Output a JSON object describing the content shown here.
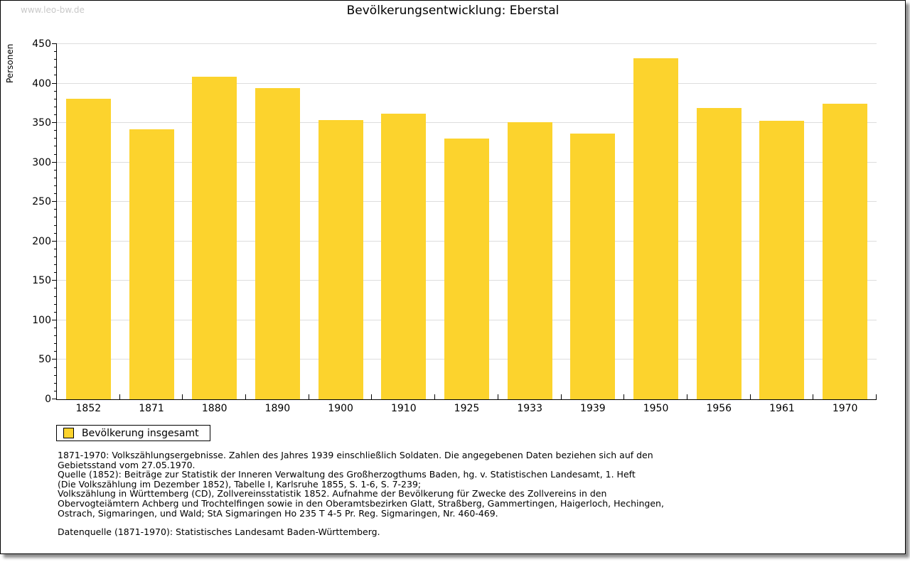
{
  "watermark": "www.leo-bw.de",
  "header": {
    "title": "Bevölkerungsentwicklung: Eberstal"
  },
  "chart_data": {
    "type": "bar",
    "title": "Bevölkerungsentwicklung: Eberstal",
    "xlabel": "",
    "ylabel": "Personen",
    "categories": [
      "1852",
      "1871",
      "1880",
      "1890",
      "1900",
      "1910",
      "1925",
      "1933",
      "1939",
      "1950",
      "1956",
      "1961",
      "1970"
    ],
    "series": [
      {
        "name": "Bevölkerung insgesamt",
        "color": "#FCD32D",
        "values": [
          381,
          342,
          409,
          394,
          354,
          362,
          330,
          351,
          337,
          432,
          369,
          353,
          374
        ]
      }
    ],
    "ylim": [
      0,
      450
    ],
    "ytick_major_step": 50,
    "ytick_minor_step": 10,
    "grid": "horizontal-major",
    "legend_position": "bottom-left"
  },
  "legend": {
    "label": "Bevölkerung insgesamt",
    "swatch_color": "#FCD32D"
  },
  "footnotes": {
    "text": "1871-1970: Volkszählungsergebnisse. Zahlen des Jahres 1939 einschließlich Soldaten. Die angegebenen Daten beziehen sich auf den\nGebietsstand vom 27.05.1970.\nQuelle (1852): Beiträge zur Statistik der Inneren Verwaltung des Großherzogthums Baden, hg. v. Statistischen Landesamt, 1. Heft\n(Die Volkszählung im Dezember 1852), Tabelle I, Karlsruhe 1855, S. 1-6, S. 7-239;\nVolkszählung in Württemberg (CD), Zollvereinsstatistik 1852. Aufnahme der Bevölkerung für Zwecke des Zollvereins in den\nObervogteiämtern Achberg und Trochtelfingen sowie in den Oberamtsbezirken Glatt, Straßberg, Gammertingen, Haigerloch, Hechingen,\nOstrach, Sigmaringen, und Wald; StA Sigmaringen Ho 235 T 4-5 Pr. Reg. Sigmaringen, Nr. 460-469.",
    "datasource": "Datenquelle (1871-1970): Statistisches Landesamt Baden-Württemberg."
  },
  "colors": {
    "bar": "#FCD32D",
    "grid": "#DDDDDD",
    "axis": "#000000",
    "tick": "#000000",
    "watermark": "#C9C9C9",
    "text": "#000000"
  }
}
